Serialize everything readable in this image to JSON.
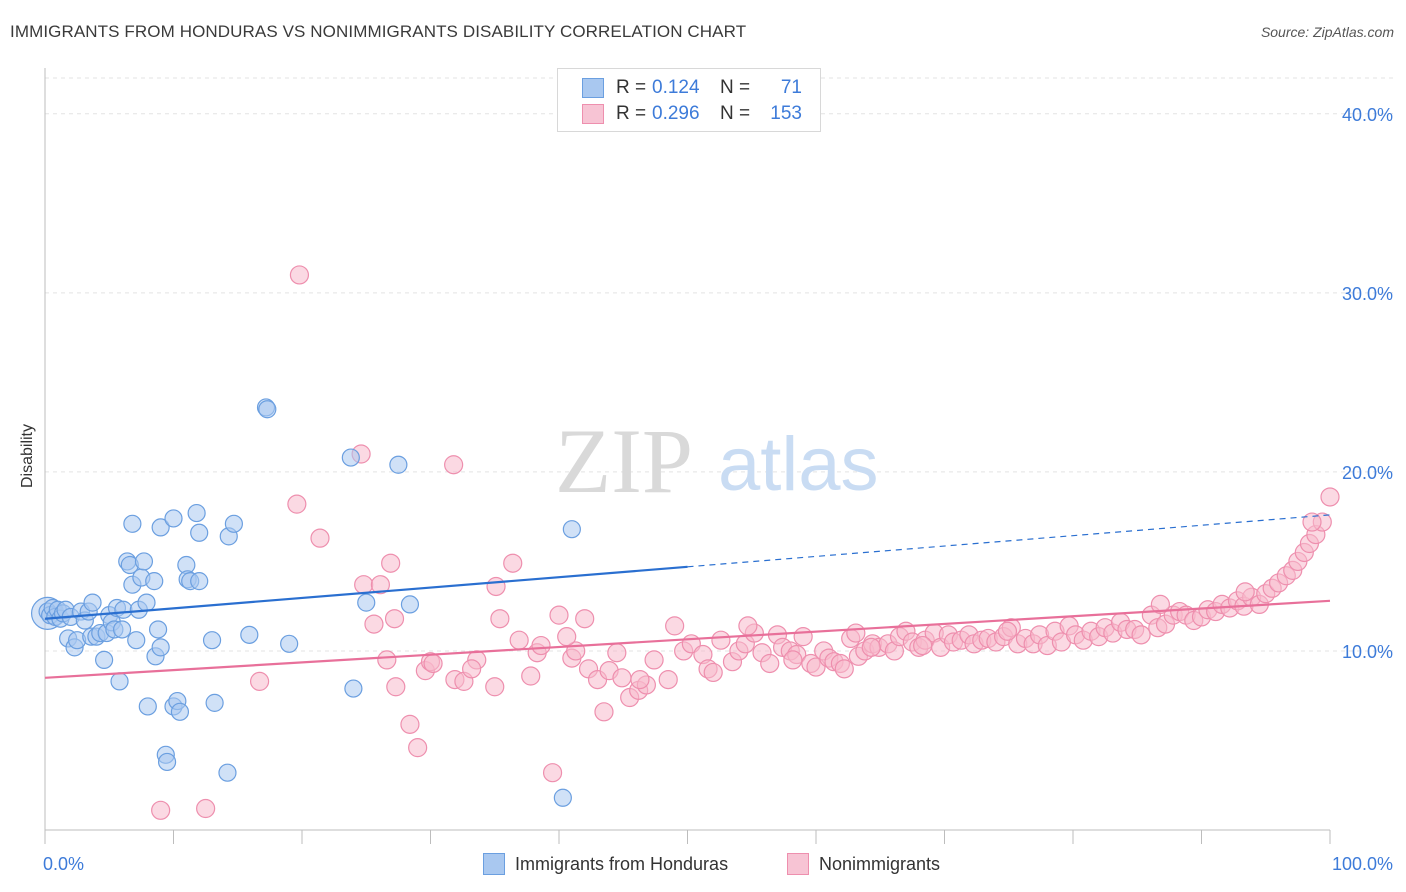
{
  "title": "IMMIGRANTS FROM HONDURAS VS NONIMMIGRANTS DISABILITY CORRELATION CHART",
  "source": "Source: ZipAtlas.com",
  "watermark": {
    "zip": "ZIP",
    "atlas": "atlas"
  },
  "colors": {
    "blue_fill": "#a9c8f0",
    "blue_stroke": "#6b9fe0",
    "blue_line": "#2a6fd0",
    "pink_fill": "#f7b9cc",
    "pink_stroke": "#ee8fae",
    "pink_line": "#e8709a",
    "axis_label": "#3d7bd9",
    "grid": "#e3e3e3"
  },
  "legend": {
    "rows": [
      {
        "r_label": "R =",
        "r_value": "0.124",
        "n_label": "N =",
        "n_value": "71"
      },
      {
        "r_label": "R =",
        "r_value": "0.296",
        "n_label": "N =",
        "n_value": "153"
      }
    ]
  },
  "bottom_legend": [
    "Immigrants from Honduras",
    "Nonimmigrants"
  ],
  "chart_data": {
    "type": "scatter",
    "title": "IMMIGRANTS FROM HONDURAS VS NONIMMIGRANTS DISABILITY CORRELATION CHART",
    "xlabel": "",
    "ylabel": "Disability",
    "xlim": [
      0,
      100
    ],
    "ylim": [
      0,
      42
    ],
    "x_tick_labels": [
      "0.0%",
      "100.0%"
    ],
    "y_ticks": [
      10,
      20,
      30,
      40
    ],
    "y_tick_labels": [
      "10.0%",
      "20.0%",
      "30.0%",
      "40.0%"
    ],
    "grid": true,
    "legend_position": "top-center",
    "series": [
      {
        "name": "Immigrants from Honduras",
        "r": 0.124,
        "n": 71,
        "trend": {
          "x0": 0,
          "y0": 11.8,
          "x1": 100,
          "y1": 17.6,
          "solid_until_x": 50
        },
        "points": [
          [
            0.2,
            12.2
          ],
          [
            0.4,
            12.0
          ],
          [
            0.6,
            12.4
          ],
          [
            0.8,
            11.9
          ],
          [
            1.0,
            12.3
          ],
          [
            1.2,
            11.8
          ],
          [
            1.4,
            12.1
          ],
          [
            1.6,
            12.3
          ],
          [
            1.8,
            10.7
          ],
          [
            2.0,
            11.9
          ],
          [
            2.3,
            10.2
          ],
          [
            2.5,
            10.6
          ],
          [
            2.8,
            12.2
          ],
          [
            3.1,
            11.7
          ],
          [
            3.4,
            12.2
          ],
          [
            3.6,
            10.8
          ],
          [
            3.7,
            12.7
          ],
          [
            4.0,
            10.8
          ],
          [
            4.3,
            11.0
          ],
          [
            4.6,
            9.5
          ],
          [
            4.8,
            11.0
          ],
          [
            5.0,
            12.0
          ],
          [
            5.2,
            11.6
          ],
          [
            5.4,
            11.2
          ],
          [
            5.6,
            12.4
          ],
          [
            5.8,
            8.3
          ],
          [
            6.0,
            11.2
          ],
          [
            6.1,
            12.3
          ],
          [
            6.4,
            15.0
          ],
          [
            6.6,
            14.8
          ],
          [
            6.8,
            13.7
          ],
          [
            6.8,
            17.1
          ],
          [
            7.1,
            10.6
          ],
          [
            7.3,
            12.3
          ],
          [
            7.5,
            14.1
          ],
          [
            7.7,
            15.0
          ],
          [
            7.9,
            12.7
          ],
          [
            8.0,
            6.9
          ],
          [
            8.5,
            13.9
          ],
          [
            8.6,
            9.7
          ],
          [
            8.8,
            11.2
          ],
          [
            9.0,
            10.2
          ],
          [
            9.0,
            16.9
          ],
          [
            9.4,
            4.2
          ],
          [
            9.5,
            3.8
          ],
          [
            10.0,
            17.4
          ],
          [
            10.0,
            6.9
          ],
          [
            10.3,
            7.2
          ],
          [
            10.5,
            6.6
          ],
          [
            11.0,
            14.8
          ],
          [
            11.1,
            14.0
          ],
          [
            11.3,
            13.9
          ],
          [
            11.8,
            17.7
          ],
          [
            12.0,
            13.9
          ],
          [
            12.0,
            16.6
          ],
          [
            13.0,
            10.6
          ],
          [
            13.2,
            7.1
          ],
          [
            14.2,
            3.2
          ],
          [
            14.3,
            16.4
          ],
          [
            14.7,
            17.1
          ],
          [
            15.9,
            10.9
          ],
          [
            17.2,
            23.6
          ],
          [
            17.3,
            23.5
          ],
          [
            19.0,
            10.4
          ],
          [
            23.8,
            20.8
          ],
          [
            24.0,
            7.9
          ],
          [
            25.0,
            12.7
          ],
          [
            27.5,
            20.4
          ],
          [
            28.4,
            12.6
          ],
          [
            40.3,
            1.8
          ],
          [
            41.0,
            16.8
          ]
        ]
      },
      {
        "name": "Nonimmigrants",
        "r": 0.296,
        "n": 153,
        "trend": {
          "x0": 0,
          "y0": 8.5,
          "x1": 100,
          "y1": 12.8
        },
        "points": [
          [
            9.0,
            1.1
          ],
          [
            12.5,
            1.2
          ],
          [
            16.7,
            8.3
          ],
          [
            19.8,
            31.0
          ],
          [
            19.6,
            18.2
          ],
          [
            21.4,
            16.3
          ],
          [
            24.6,
            21.0
          ],
          [
            24.8,
            13.7
          ],
          [
            25.6,
            11.5
          ],
          [
            26.1,
            13.7
          ],
          [
            26.6,
            9.5
          ],
          [
            26.9,
            14.9
          ],
          [
            27.2,
            11.8
          ],
          [
            27.3,
            8.0
          ],
          [
            28.4,
            5.9
          ],
          [
            29.0,
            4.6
          ],
          [
            29.6,
            8.9
          ],
          [
            30.0,
            9.4
          ],
          [
            31.8,
            20.4
          ],
          [
            31.9,
            8.4
          ],
          [
            32.6,
            8.3
          ],
          [
            33.6,
            9.5
          ],
          [
            35.0,
            8.0
          ],
          [
            35.1,
            13.6
          ],
          [
            35.4,
            11.8
          ],
          [
            36.4,
            14.9
          ],
          [
            36.9,
            10.6
          ],
          [
            37.8,
            8.6
          ],
          [
            38.3,
            9.9
          ],
          [
            38.6,
            10.3
          ],
          [
            39.5,
            3.2
          ],
          [
            40.0,
            12.0
          ],
          [
            41.0,
            9.6
          ],
          [
            41.3,
            10.0
          ],
          [
            42.0,
            11.8
          ],
          [
            42.3,
            9.0
          ],
          [
            43.0,
            8.4
          ],
          [
            43.5,
            6.6
          ],
          [
            43.9,
            8.9
          ],
          [
            44.5,
            9.9
          ],
          [
            44.9,
            8.5
          ],
          [
            45.5,
            7.4
          ],
          [
            46.2,
            7.8
          ],
          [
            46.8,
            8.1
          ],
          [
            47.4,
            9.5
          ],
          [
            48.5,
            8.4
          ],
          [
            49.0,
            11.4
          ],
          [
            49.7,
            10.0
          ],
          [
            50.3,
            10.4
          ],
          [
            51.2,
            9.8
          ],
          [
            51.6,
            9.0
          ],
          [
            52.0,
            8.8
          ],
          [
            52.6,
            10.6
          ],
          [
            53.5,
            9.4
          ],
          [
            54.0,
            10.0
          ],
          [
            54.5,
            10.4
          ],
          [
            55.2,
            11.0
          ],
          [
            55.8,
            9.9
          ],
          [
            56.4,
            9.3
          ],
          [
            57.0,
            10.9
          ],
          [
            57.4,
            10.2
          ],
          [
            58.0,
            10.0
          ],
          [
            58.5,
            9.8
          ],
          [
            59.0,
            10.8
          ],
          [
            59.6,
            9.3
          ],
          [
            60.0,
            9.1
          ],
          [
            60.6,
            10.0
          ],
          [
            61.0,
            9.6
          ],
          [
            61.4,
            9.4
          ],
          [
            61.9,
            9.3
          ],
          [
            62.2,
            9.0
          ],
          [
            62.7,
            10.7
          ],
          [
            63.3,
            9.7
          ],
          [
            63.8,
            10.0
          ],
          [
            64.4,
            10.4
          ],
          [
            64.9,
            10.2
          ],
          [
            65.6,
            10.4
          ],
          [
            66.1,
            10.0
          ],
          [
            66.5,
            10.8
          ],
          [
            67.0,
            11.1
          ],
          [
            67.5,
            10.5
          ],
          [
            68.0,
            10.2
          ],
          [
            68.5,
            10.6
          ],
          [
            69.2,
            11.0
          ],
          [
            69.7,
            10.2
          ],
          [
            70.3,
            10.9
          ],
          [
            70.7,
            10.5
          ],
          [
            71.3,
            10.6
          ],
          [
            71.9,
            10.9
          ],
          [
            72.3,
            10.4
          ],
          [
            72.9,
            10.6
          ],
          [
            73.4,
            10.7
          ],
          [
            74.0,
            10.5
          ],
          [
            74.6,
            10.8
          ],
          [
            75.2,
            11.3
          ],
          [
            75.7,
            10.4
          ],
          [
            76.3,
            10.7
          ],
          [
            76.9,
            10.4
          ],
          [
            77.4,
            10.9
          ],
          [
            78.0,
            10.3
          ],
          [
            78.6,
            11.1
          ],
          [
            79.1,
            10.5
          ],
          [
            79.7,
            11.4
          ],
          [
            80.2,
            10.9
          ],
          [
            80.8,
            10.6
          ],
          [
            81.4,
            11.1
          ],
          [
            82.0,
            10.8
          ],
          [
            82.5,
            11.3
          ],
          [
            83.1,
            11.0
          ],
          [
            83.7,
            11.6
          ],
          [
            84.2,
            11.2
          ],
          [
            84.8,
            11.2
          ],
          [
            85.3,
            10.9
          ],
          [
            86.1,
            12.0
          ],
          [
            86.6,
            11.3
          ],
          [
            87.2,
            11.5
          ],
          [
            87.8,
            12.0
          ],
          [
            88.3,
            12.2
          ],
          [
            88.8,
            12.0
          ],
          [
            89.4,
            11.7
          ],
          [
            90.0,
            11.9
          ],
          [
            90.5,
            12.3
          ],
          [
            91.1,
            12.2
          ],
          [
            91.6,
            12.6
          ],
          [
            92.2,
            12.4
          ],
          [
            92.8,
            12.8
          ],
          [
            93.3,
            12.5
          ],
          [
            93.9,
            13.0
          ],
          [
            94.5,
            12.6
          ],
          [
            95.0,
            13.2
          ],
          [
            95.5,
            13.5
          ],
          [
            96.0,
            13.8
          ],
          [
            96.6,
            14.2
          ],
          [
            97.1,
            14.5
          ],
          [
            97.5,
            15.0
          ],
          [
            98.0,
            15.5
          ],
          [
            98.4,
            16.0
          ],
          [
            98.9,
            16.5
          ],
          [
            99.4,
            17.2
          ],
          [
            100.0,
            18.6
          ],
          [
            74.9,
            11.1
          ],
          [
            86.8,
            12.6
          ],
          [
            68.3,
            10.3
          ],
          [
            64.3,
            10.2
          ],
          [
            58.2,
            9.5
          ],
          [
            54.7,
            11.4
          ],
          [
            46.3,
            8.4
          ],
          [
            40.6,
            10.8
          ],
          [
            33.2,
            9.0
          ],
          [
            30.2,
            9.3
          ],
          [
            98.6,
            17.2
          ],
          [
            93.4,
            13.3
          ],
          [
            63.1,
            11.0
          ]
        ]
      }
    ]
  }
}
